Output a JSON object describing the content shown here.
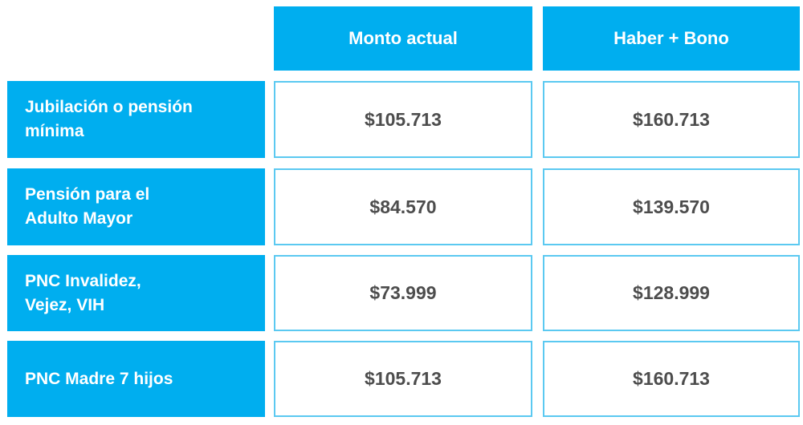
{
  "table": {
    "columns": [
      "Monto actual",
      "Haber + Bono"
    ],
    "rows": [
      {
        "label_line1": "Jubilación o pensión",
        "label_line2": "mínima",
        "monto_actual": "$105.713",
        "haber_bono": "$160.713"
      },
      {
        "label_line1": "Pensión para el",
        "label_line2": "Adulto Mayor",
        "monto_actual": "$84.570",
        "haber_bono": "$139.570"
      },
      {
        "label_line1": "PNC Invalidez,",
        "label_line2": "Vejez, VIH",
        "monto_actual": "$73.999",
        "haber_bono": "$128.999"
      },
      {
        "label_line1": "PNC Madre 7 hijos",
        "label_line2": "",
        "monto_actual": "$105.713",
        "haber_bono": "$160.713"
      }
    ]
  },
  "colors": {
    "header_bg": "#00aeef",
    "border": "#5bc9f1",
    "value_text": "#4d4d4d"
  }
}
